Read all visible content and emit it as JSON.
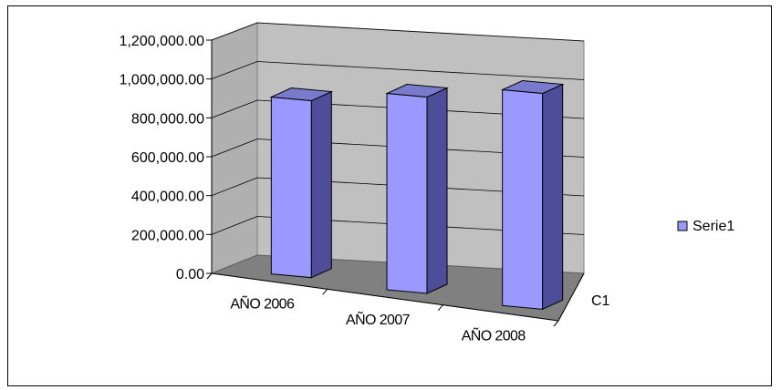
{
  "chart_data": {
    "type": "bar",
    "style": "3d-column",
    "categories": [
      "AÑO 2006",
      "AÑO 2007",
      "AÑO 2008"
    ],
    "series": [
      {
        "name": "Serie1",
        "values": [
          910000,
          1010000,
          1110000
        ]
      }
    ],
    "depth_label": "C1",
    "ylim": [
      0,
      1200000
    ],
    "y_ticks": [
      "0.00",
      "200,000.00",
      "400,000.00",
      "600,000.00",
      "800,000.00",
      "1,000,000.00",
      "1,200,000.00"
    ],
    "y_tick_values": [
      0,
      200000,
      400000,
      600000,
      800000,
      1000000,
      1200000
    ],
    "grid": true,
    "legend": "right",
    "colors": {
      "bar_front": "#9999ff",
      "bar_side": "#4d4d99",
      "bar_top": "#7a7acc",
      "back_wall": "#c0c0c0",
      "side_wall": "#b0b0b0",
      "floor": "#808080"
    }
  }
}
